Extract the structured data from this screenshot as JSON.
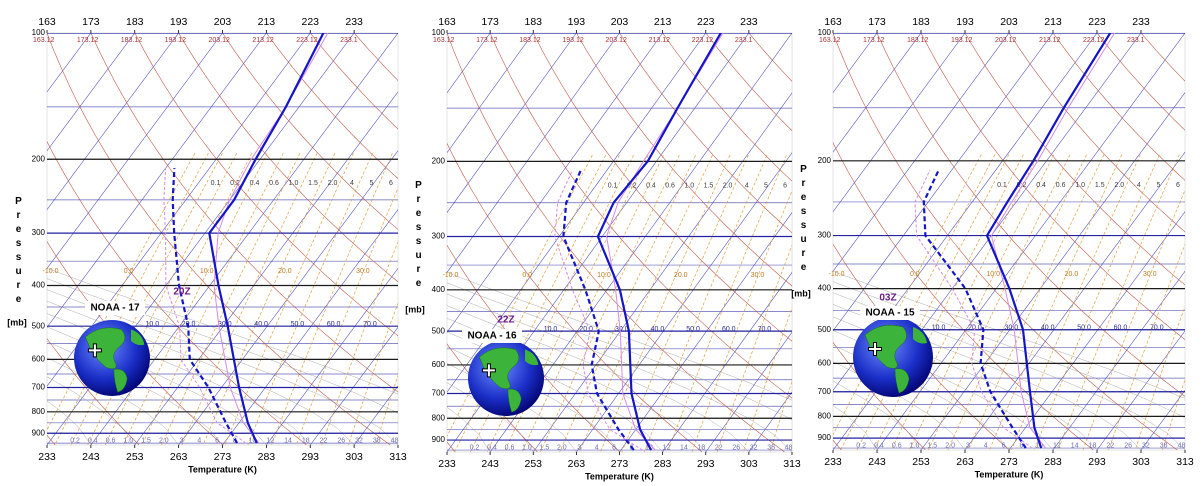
{
  "chart_data": [
    {
      "type": "skewt",
      "title": "20Z",
      "subtitle": "NOAA - 17",
      "x_label": "Temperature (K)",
      "y_label": "Pressure",
      "y_unit": "[mb]",
      "xlim": [
        233,
        313
      ],
      "xticks": [
        233,
        243,
        253,
        263,
        273,
        283,
        293,
        303,
        313
      ],
      "x2lim": [
        163,
        243
      ],
      "x2ticks": [
        163,
        173,
        183,
        193,
        203,
        213,
        223,
        233
      ],
      "ylim": [
        100,
        960
      ],
      "yticks": [
        100,
        200,
        300,
        400,
        500,
        600,
        700,
        800,
        900
      ],
      "y_scale": "log",
      "isopleth_labels": {
        "dry_adiabat": [
          "163.12",
          "173.12",
          "183.12",
          "193.12",
          "203.12",
          "213.12",
          "223.12",
          "233.1"
        ],
        "mixing_ratio_upper": [
          "0.1",
          "0.2",
          "0.4",
          "0.6",
          "1.0",
          "1.5",
          "2.0",
          "4",
          "5",
          "6"
        ],
        "moist_upper": [
          "-10.0",
          "0.0",
          "10.0",
          "20.0",
          "30.0"
        ],
        "moist_lower": [
          "10.0",
          "20.0",
          "30.0",
          "40.0",
          "50.0",
          "60.0",
          "70.0"
        ],
        "mixing_ratio_lower": [
          "0.2",
          "0.4",
          "0.6",
          "1.0",
          "1.5",
          "2.0",
          "3",
          "4",
          "6",
          "8",
          "10",
          "12",
          "14",
          "18",
          "22",
          "26",
          "32",
          "38",
          "48"
        ]
      },
      "series": [
        {
          "color": "#d58be6",
          "style": "solid",
          "pressure": [
            950,
            850,
            700,
            500,
            400,
            300,
            250,
            200,
            150,
            100
          ],
          "values": [
            281,
            274,
            265,
            252,
            244,
            236,
            233,
            231,
            230,
            227
          ]
        },
        {
          "color": "#d58be6",
          "style": "dashed",
          "pressure": [
            950,
            850,
            700,
            600,
            500,
            400,
            300,
            250,
            210
          ],
          "values": [
            278,
            268,
            258,
            249,
            243,
            233,
            224,
            218,
            213
          ]
        },
        {
          "color": "#1414c8",
          "style": "solid",
          "pressure": [
            950,
            850,
            700,
            500,
            400,
            300,
            250,
            200,
            150,
            100
          ],
          "values": [
            280.5,
            275,
            267,
            254,
            245,
            234,
            234,
            232,
            230,
            226
          ]
        },
        {
          "color": "#1414c8",
          "style": "dashed",
          "pressure": [
            950,
            850,
            700,
            600,
            500,
            400,
            300,
            250,
            210
          ],
          "values": [
            276,
            270,
            260,
            251,
            245,
            236,
            226,
            220,
            215
          ]
        }
      ]
    },
    {
      "type": "skewt",
      "title": "22Z",
      "subtitle": "NOAA - 16",
      "x_label": "Temperature (K)",
      "y_label": "Pressure",
      "y_unit": "[mb]",
      "xlim": [
        233,
        313
      ],
      "xticks": [
        233,
        243,
        253,
        263,
        273,
        283,
        293,
        303,
        313
      ],
      "x2lim": [
        163,
        243
      ],
      "x2ticks": [
        163,
        173,
        183,
        193,
        203,
        213,
        223,
        233
      ],
      "ylim": [
        100,
        960
      ],
      "yticks": [
        100,
        200,
        300,
        400,
        500,
        600,
        700,
        800,
        900
      ],
      "y_scale": "log",
      "isopleth_labels": {
        "dry_adiabat": [
          "163.12",
          "173.12",
          "183.12",
          "193.12",
          "203.12",
          "213.12",
          "223.12",
          "233.1"
        ],
        "mixing_ratio_upper": [
          "0.1",
          "0.2",
          "0.4",
          "0.6",
          "1.0",
          "1.5",
          "2.0",
          "4",
          "5",
          "6"
        ],
        "moist_upper": [
          "-10.0",
          "0.0",
          "10.0",
          "20.0",
          "30.0"
        ],
        "moist_lower": [
          "10.0",
          "20.0",
          "30.0",
          "40.0",
          "50.0",
          "60.0",
          "70.0"
        ],
        "mixing_ratio_lower": [
          "0.2",
          "0.4",
          "0.6",
          "1.0",
          "1.5",
          "2.0",
          "3",
          "4",
          "6",
          "8",
          "10",
          "12",
          "14",
          "18",
          "22",
          "26",
          "32",
          "38",
          "48"
        ]
      },
      "series": [
        {
          "color": "#d58be6",
          "style": "solid",
          "pressure": [
            950,
            850,
            700,
            500,
            400,
            300,
            250,
            200,
            150,
            100
          ],
          "values": [
            281,
            273,
            264,
            253,
            245,
            234,
            231,
            230,
            229,
            227
          ]
        },
        {
          "color": "#d58be6",
          "style": "dashed",
          "pressure": [
            950,
            850,
            700,
            600,
            500,
            400,
            300,
            250,
            210
          ],
          "values": [
            278,
            267,
            256,
            250,
            246,
            235,
            222,
            217,
            215
          ]
        },
        {
          "color": "#1414c8",
          "style": "solid",
          "pressure": [
            950,
            850,
            700,
            500,
            400,
            300,
            250,
            200,
            150,
            100
          ],
          "values": [
            280,
            274,
            266,
            255,
            246,
            232,
            230,
            231,
            229,
            226.5
          ]
        },
        {
          "color": "#1414c8",
          "style": "dashed",
          "pressure": [
            950,
            850,
            700,
            600,
            500,
            400,
            300,
            250,
            210
          ],
          "values": [
            276,
            269,
            258,
            252,
            248,
            238,
            224,
            219,
            217
          ]
        }
      ]
    },
    {
      "type": "skewt",
      "title": "03Z",
      "subtitle": "NOAA - 15",
      "x_label": "Temperature (K)",
      "y_label": "Pressure",
      "y_unit": "[mb]",
      "xlim": [
        233,
        313
      ],
      "xticks": [
        233,
        243,
        253,
        263,
        273,
        283,
        293,
        303,
        313
      ],
      "x2lim": [
        163,
        243
      ],
      "x2ticks": [
        163,
        173,
        183,
        193,
        203,
        213,
        223,
        233
      ],
      "ylim": [
        100,
        960
      ],
      "yticks": [
        100,
        200,
        300,
        400,
        500,
        600,
        700,
        800,
        900
      ],
      "y_scale": "log",
      "isopleth_labels": {
        "dry_adiabat": [
          "163.12",
          "173.12",
          "183.12",
          "193.12",
          "203.12",
          "213.12",
          "223.12",
          "233.1"
        ],
        "mixing_ratio_upper": [
          "0.1",
          "0.2",
          "0.4",
          "0.6",
          "1.0",
          "1.5",
          "2.0",
          "4",
          "5",
          "6"
        ],
        "moist_upper": [
          "-10.0",
          "0.0",
          "10.0",
          "20.0",
          "30.0"
        ],
        "moist_lower": [
          "10.0",
          "20.0",
          "30.0",
          "40.0",
          "50.0",
          "60.0",
          "70.0"
        ],
        "mixing_ratio_lower": [
          "0.2",
          "0.4",
          "0.6",
          "1.0",
          "1.5",
          "2.0",
          "3",
          "4",
          "6",
          "8",
          "10",
          "12",
          "14",
          "18",
          "22",
          "26",
          "32",
          "38",
          "48"
        ]
      },
      "series": [
        {
          "color": "#d58be6",
          "style": "solid",
          "pressure": [
            950,
            850,
            700,
            500,
            400,
            300,
            250,
            200,
            150,
            100
          ],
          "values": [
            281,
            274,
            266,
            254,
            245,
            233,
            232,
            231,
            229,
            227
          ]
        },
        {
          "color": "#d58be6",
          "style": "dashed",
          "pressure": [
            950,
            850,
            700,
            600,
            500,
            400,
            300,
            250,
            210
          ],
          "values": [
            278,
            268,
            257,
            250,
            245,
            233,
            216,
            210,
            208
          ]
        },
        {
          "color": "#1414c8",
          "style": "solid",
          "pressure": [
            950,
            850,
            700,
            500,
            400,
            300,
            250,
            200,
            150,
            100
          ],
          "values": [
            280,
            275,
            268,
            256,
            246,
            232,
            231,
            230,
            228,
            226
          ]
        },
        {
          "color": "#1414c8",
          "style": "dashed",
          "pressure": [
            950,
            850,
            700,
            600,
            500,
            400,
            300,
            250,
            210
          ],
          "values": [
            276.5,
            270,
            259,
            252,
            247,
            236,
            218,
            212,
            210
          ]
        }
      ]
    }
  ]
}
